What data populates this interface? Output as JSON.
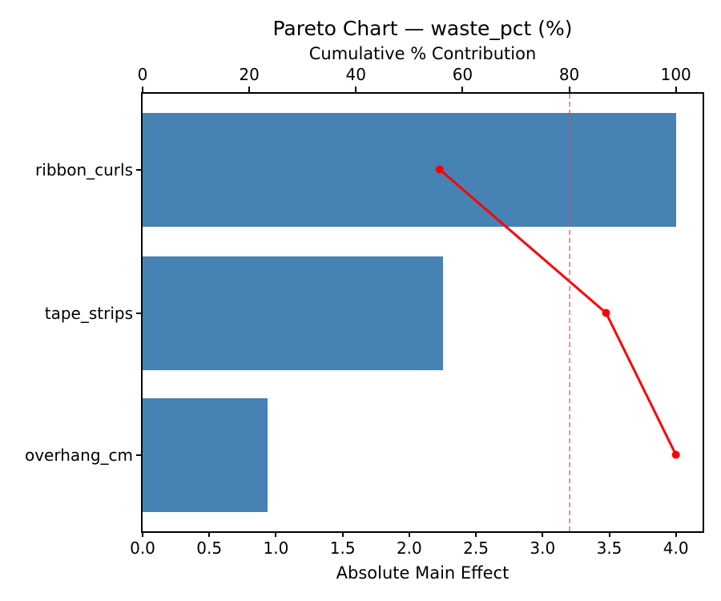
{
  "chart_data": {
    "type": "bar",
    "subtype": "pareto-horizontal-bars-with-cumulative-line",
    "title": "Pareto Chart — waste_pct (%)",
    "categories": [
      "ribbon_curls",
      "tape_strips",
      "overhang_cm"
    ],
    "series": [
      {
        "name": "absolute_main_effect_bars",
        "values": [
          4.0,
          2.25,
          0.94
        ]
      },
      {
        "name": "cumulative_pct_line",
        "values": [
          55.7,
          86.9,
          100.0
        ]
      }
    ],
    "bottom_axis": {
      "label": "Absolute Main Effect",
      "tick_values": [
        0,
        0.5,
        1,
        1.5,
        2,
        2.5,
        3,
        3.5,
        4
      ],
      "tick_labels": [
        "0.0",
        "0.5",
        "1.0",
        "1.5",
        "2.0",
        "2.5",
        "3.0",
        "3.5",
        "4.0"
      ],
      "range": [
        0,
        4.2
      ]
    },
    "top_axis": {
      "label": "Cumulative % Contribution",
      "tick_values": [
        0,
        20,
        40,
        60,
        80,
        100
      ],
      "tick_labels": [
        "0",
        "20",
        "40",
        "60",
        "80",
        "100"
      ],
      "range": [
        0,
        105
      ]
    },
    "reference_line": {
      "axis": "top",
      "value": 80,
      "style": "dashed"
    },
    "legend": "none",
    "grid": "off",
    "colors": {
      "bar": "#4682b4",
      "cumulative_line": "#ff0000",
      "marker": "#ff0000",
      "reference_line": "#ff4040",
      "axis": "#000000",
      "background": "#ffffff"
    }
  }
}
